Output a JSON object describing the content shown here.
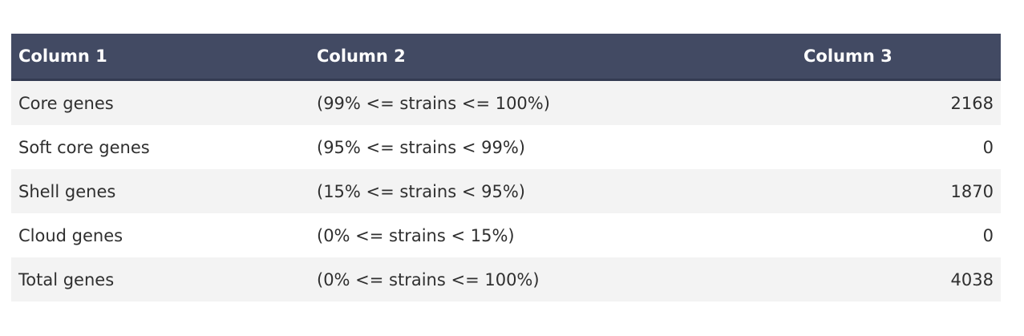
{
  "table": {
    "headers": [
      "Column 1",
      "Column 2",
      "Column 3"
    ],
    "rows": [
      {
        "category": "Core genes",
        "range": "(99% <= strains <= 100%)",
        "count": "2168"
      },
      {
        "category": "Soft core genes",
        "range": "(95% <= strains < 99%)",
        "count": "0"
      },
      {
        "category": "Shell genes",
        "range": "(15% <= strains < 95%)",
        "count": "1870"
      },
      {
        "category": "Cloud genes",
        "range": "(0% <= strains < 15%)",
        "count": "0"
      },
      {
        "category": "Total genes",
        "range": "(0% <= strains <= 100%)",
        "count": "4038"
      }
    ]
  },
  "colors": {
    "header_bg": "#424a63",
    "header_text": "#ffffff",
    "row_odd_bg": "#f3f3f3",
    "row_even_bg": "#ffffff"
  }
}
